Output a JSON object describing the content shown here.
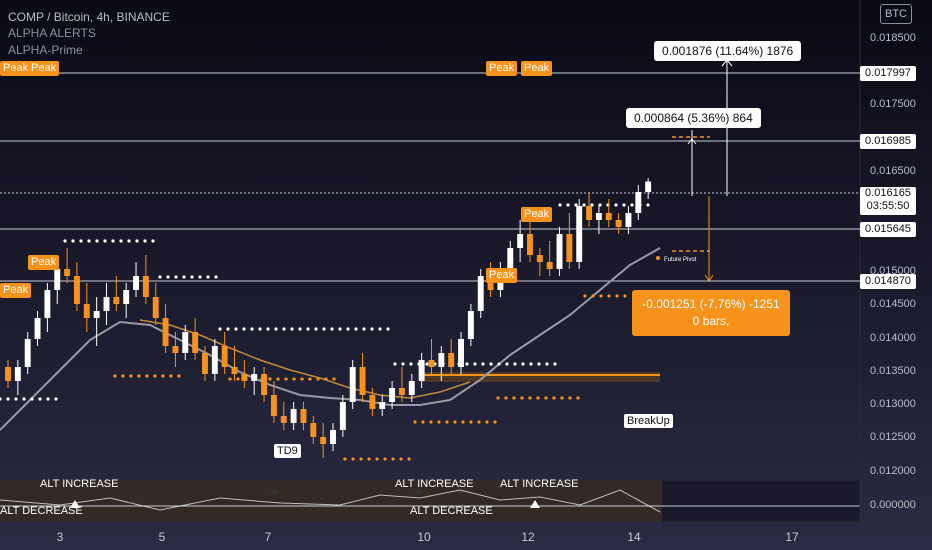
{
  "header": {
    "symbol": "COMP / Bitcoin, 4h, BINANCE",
    "ind1": "ALPHA ALERTS",
    "ind2": "ALPHA-Prime"
  },
  "currency_button": "BTC",
  "price_axis": {
    "labels": [
      "0.018500",
      "0.017500",
      "0.016500",
      "0.015000",
      "0.014500",
      "0.014000",
      "0.013500",
      "0.013000",
      "0.012500",
      "0.012000"
    ],
    "tags": {
      "t1": "0.017997",
      "t2": "0.016985",
      "t3": "0.016165",
      "countdown": "03:55:50",
      "t4": "0.015645",
      "t5": "0.014870"
    },
    "osc_zero": "0.000000"
  },
  "time_axis": [
    "3",
    "5",
    "7",
    "10",
    "12",
    "14",
    "17"
  ],
  "measurements": {
    "up_large": "0.001876 (11.64%) 1876",
    "up_small": "0.000864 (5.36%) 864",
    "down_line1": "-0.001251 (-7.76%) -1251",
    "down_line2": "0 bars,"
  },
  "labels": {
    "peak": "Peak",
    "td9": "TD9",
    "breakup": "BreakUp",
    "future_pivot": "Future Pivot",
    "alt_increase": "ALT INCREASE",
    "alt_decrease": "ALT DECREASE"
  },
  "colors": {
    "bull": "#ffffff",
    "bear": "#f7931a",
    "accent": "#f7931a",
    "ma": "#9a9aa6",
    "ma_slow": "#c08a3e"
  },
  "chart_data": {
    "type": "candlestick",
    "ylim": [
      0.012,
      0.0186
    ],
    "candles": [
      [
        0.0135,
        0.0136,
        0.0132,
        0.0133
      ],
      [
        0.0133,
        0.0136,
        0.0131,
        0.0135
      ],
      [
        0.0135,
        0.014,
        0.0134,
        0.0139
      ],
      [
        0.0139,
        0.0143,
        0.0138,
        0.0142
      ],
      [
        0.0142,
        0.0147,
        0.014,
        0.0146
      ],
      [
        0.0146,
        0.015,
        0.0144,
        0.0149
      ],
      [
        0.0149,
        0.0152,
        0.0147,
        0.0148
      ],
      [
        0.0148,
        0.015,
        0.0143,
        0.0144
      ],
      [
        0.0144,
        0.0147,
        0.014,
        0.0142
      ],
      [
        0.0142,
        0.0145,
        0.0138,
        0.0143
      ],
      [
        0.0143,
        0.0147,
        0.0141,
        0.0145
      ],
      [
        0.0145,
        0.0148,
        0.0143,
        0.0144
      ],
      [
        0.0144,
        0.0147,
        0.0142,
        0.0146
      ],
      [
        0.0146,
        0.015,
        0.0145,
        0.0148
      ],
      [
        0.0148,
        0.0151,
        0.0144,
        0.0145
      ],
      [
        0.0145,
        0.0147,
        0.0141,
        0.0142
      ],
      [
        0.0142,
        0.0144,
        0.0137,
        0.0138
      ],
      [
        0.0138,
        0.014,
        0.0135,
        0.0137
      ],
      [
        0.0137,
        0.0141,
        0.0136,
        0.014
      ],
      [
        0.014,
        0.0142,
        0.0136,
        0.0137
      ],
      [
        0.0137,
        0.0138,
        0.0133,
        0.0134
      ],
      [
        0.0134,
        0.0139,
        0.0133,
        0.0138
      ],
      [
        0.0138,
        0.014,
        0.0134,
        0.0135
      ],
      [
        0.0135,
        0.0138,
        0.0133,
        0.0134
      ],
      [
        0.0134,
        0.0136,
        0.0132,
        0.0133
      ],
      [
        0.0133,
        0.0135,
        0.0131,
        0.0134
      ],
      [
        0.0134,
        0.0135,
        0.013,
        0.0131
      ],
      [
        0.0131,
        0.0133,
        0.0127,
        0.0128
      ],
      [
        0.0128,
        0.013,
        0.0126,
        0.0127
      ],
      [
        0.0127,
        0.013,
        0.0126,
        0.0129
      ],
      [
        0.0129,
        0.013,
        0.0126,
        0.0127
      ],
      [
        0.0127,
        0.0128,
        0.0124,
        0.0125
      ],
      [
        0.0125,
        0.0127,
        0.0122,
        0.0124
      ],
      [
        0.0124,
        0.0127,
        0.0123,
        0.0126
      ],
      [
        0.0126,
        0.0131,
        0.0125,
        0.013
      ],
      [
        0.013,
        0.0136,
        0.0129,
        0.0135
      ],
      [
        0.0135,
        0.0137,
        0.013,
        0.0131
      ],
      [
        0.0131,
        0.0132,
        0.0128,
        0.0129
      ],
      [
        0.0129,
        0.0131,
        0.0128,
        0.013
      ],
      [
        0.013,
        0.0133,
        0.0129,
        0.0132
      ],
      [
        0.0132,
        0.0135,
        0.013,
        0.0131
      ],
      [
        0.0131,
        0.0134,
        0.013,
        0.0133
      ],
      [
        0.0133,
        0.0137,
        0.0132,
        0.0136
      ],
      [
        0.0136,
        0.0139,
        0.0134,
        0.0135
      ],
      [
        0.0135,
        0.0138,
        0.0133,
        0.0137
      ],
      [
        0.0137,
        0.0139,
        0.0134,
        0.0135
      ],
      [
        0.0135,
        0.014,
        0.0134,
        0.0139
      ],
      [
        0.0139,
        0.0144,
        0.0138,
        0.0143
      ],
      [
        0.0143,
        0.0149,
        0.0142,
        0.0148
      ],
      [
        0.0148,
        0.015,
        0.0145,
        0.0146
      ],
      [
        0.0146,
        0.015,
        0.0145,
        0.0149
      ],
      [
        0.0149,
        0.0153,
        0.0148,
        0.0152
      ],
      [
        0.0152,
        0.0156,
        0.015,
        0.0154
      ],
      [
        0.0154,
        0.0157,
        0.015,
        0.0151
      ],
      [
        0.0151,
        0.0152,
        0.0148,
        0.015
      ],
      [
        0.015,
        0.0153,
        0.0148,
        0.0149
      ],
      [
        0.0149,
        0.0155,
        0.0148,
        0.0154
      ],
      [
        0.0154,
        0.0157,
        0.0149,
        0.015
      ],
      [
        0.015,
        0.0159,
        0.0149,
        0.0158
      ],
      [
        0.0158,
        0.016,
        0.0155,
        0.0156
      ],
      [
        0.0156,
        0.0158,
        0.0154,
        0.0157
      ],
      [
        0.0157,
        0.0159,
        0.0155,
        0.0156
      ],
      [
        0.0156,
        0.0157,
        0.0154,
        0.0155
      ],
      [
        0.0155,
        0.0158,
        0.0154,
        0.0157
      ],
      [
        0.0157,
        0.0161,
        0.0156,
        0.016
      ],
      [
        0.016,
        0.0162,
        0.0159,
        0.01615
      ]
    ]
  }
}
